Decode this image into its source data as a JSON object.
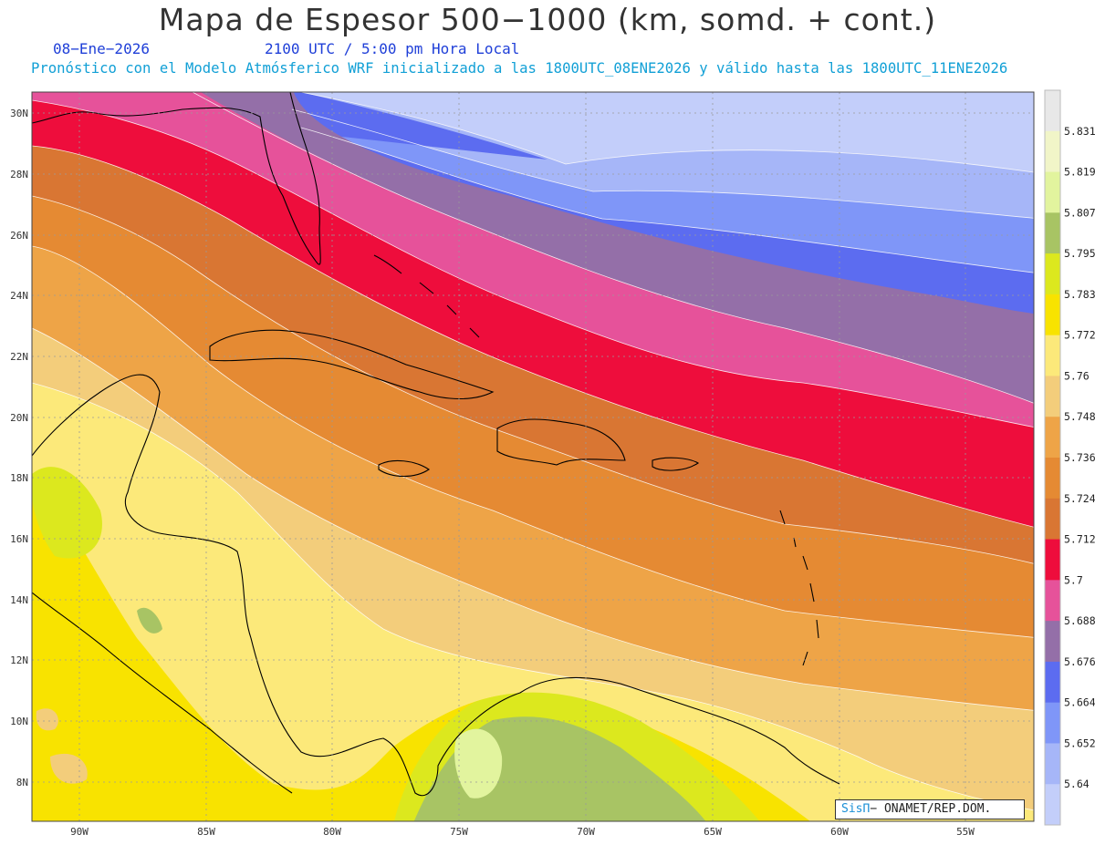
{
  "header": {
    "title": "Mapa de Espesor 500−1000 (km, somd. + cont.)",
    "date": "08−Ene−2026",
    "time": "2100 UTC / 5:00 pm Hora Local",
    "description": "Pronóstico con el Modelo Atmósferico WRF inicializado a las 1800UTC_08ENE2026 y válido hasta las  1800UTC_11ENE2026"
  },
  "map": {
    "lon_range": [
      -92,
      -52.5
    ],
    "lat_range": [
      6.8,
      30.6
    ],
    "lon_ticks": [
      "90W",
      "85W",
      "80W",
      "75W",
      "70W",
      "65W",
      "60W",
      "55W"
    ],
    "lat_ticks": [
      "30N",
      "28N",
      "26N",
      "24N",
      "22N",
      "20N",
      "18N",
      "16N",
      "14N",
      "12N",
      "10N",
      "8N"
    ]
  },
  "colorbar": {
    "labels": [
      "5.831",
      "5.819",
      "5.807",
      "5.795",
      "5.783",
      "5.772",
      "5.76",
      "5.748",
      "5.736",
      "5.724",
      "5.712",
      "5.7",
      "5.688",
      "5.676",
      "5.664",
      "5.652",
      "5.64"
    ],
    "colors": [
      "#e8e8e8",
      "#f1f5c8",
      "#e2f49e",
      "#a8c464",
      "#dce81e",
      "#f8e300",
      "#fce97a",
      "#f3cd7b",
      "#eea447",
      "#e58a33",
      "#d97633",
      "#ee0d3c",
      "#e6529a",
      "#946fa8",
      "#5c6cf0",
      "#7f96f8",
      "#a6b6f8",
      "#c3cefa"
    ]
  },
  "credit": {
    "brand": "SisΠ",
    "text": "− ONAMET/REP.DOM."
  },
  "colors": {
    "background_ocean_top": "#c3cefa",
    "coast": "#000000",
    "grid": "#9a9a9a"
  }
}
